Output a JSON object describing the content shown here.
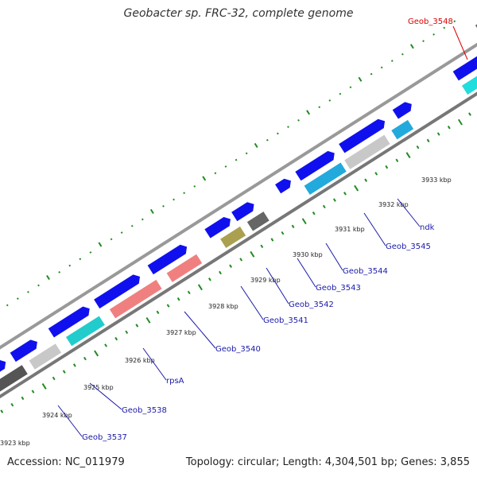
{
  "title": "Geobacter sp. FRC-32, complete genome",
  "footer": {
    "accession": "Accession: NC_011979",
    "summary": "Topology: circular; Length: 4,304,501 bp; Genes: 3,855"
  },
  "colors": {
    "gene_blue": "#1010ee",
    "backbone": "#888888",
    "tick_green": "#228b22",
    "label_blue": "#1a1aaa",
    "label_red": "#dd0000"
  },
  "kbp_labels": [
    "3923 kbp",
    "3924 kbp",
    "3925 kbp",
    "3926 kbp",
    "3927 kbp",
    "3928 kbp",
    "3929 kbp",
    "3930 kbp",
    "3931 kbp",
    "3932 kbp",
    "3933 kbp"
  ],
  "gene_labels": [
    {
      "text": "Geob_3537",
      "color": "blue"
    },
    {
      "text": "Geob_3538",
      "color": "blue"
    },
    {
      "text": "rpsA",
      "color": "blue"
    },
    {
      "text": "Geob_3540",
      "color": "blue"
    },
    {
      "text": "Geob_3541",
      "color": "blue"
    },
    {
      "text": "Geob_3542",
      "color": "blue"
    },
    {
      "text": "Geob_3543",
      "color": "blue"
    },
    {
      "text": "Geob_3544",
      "color": "blue"
    },
    {
      "text": "Geob_3545",
      "color": "blue"
    },
    {
      "text": "ndk",
      "color": "blue"
    },
    {
      "text": "Geob_3548",
      "color": "red"
    }
  ]
}
